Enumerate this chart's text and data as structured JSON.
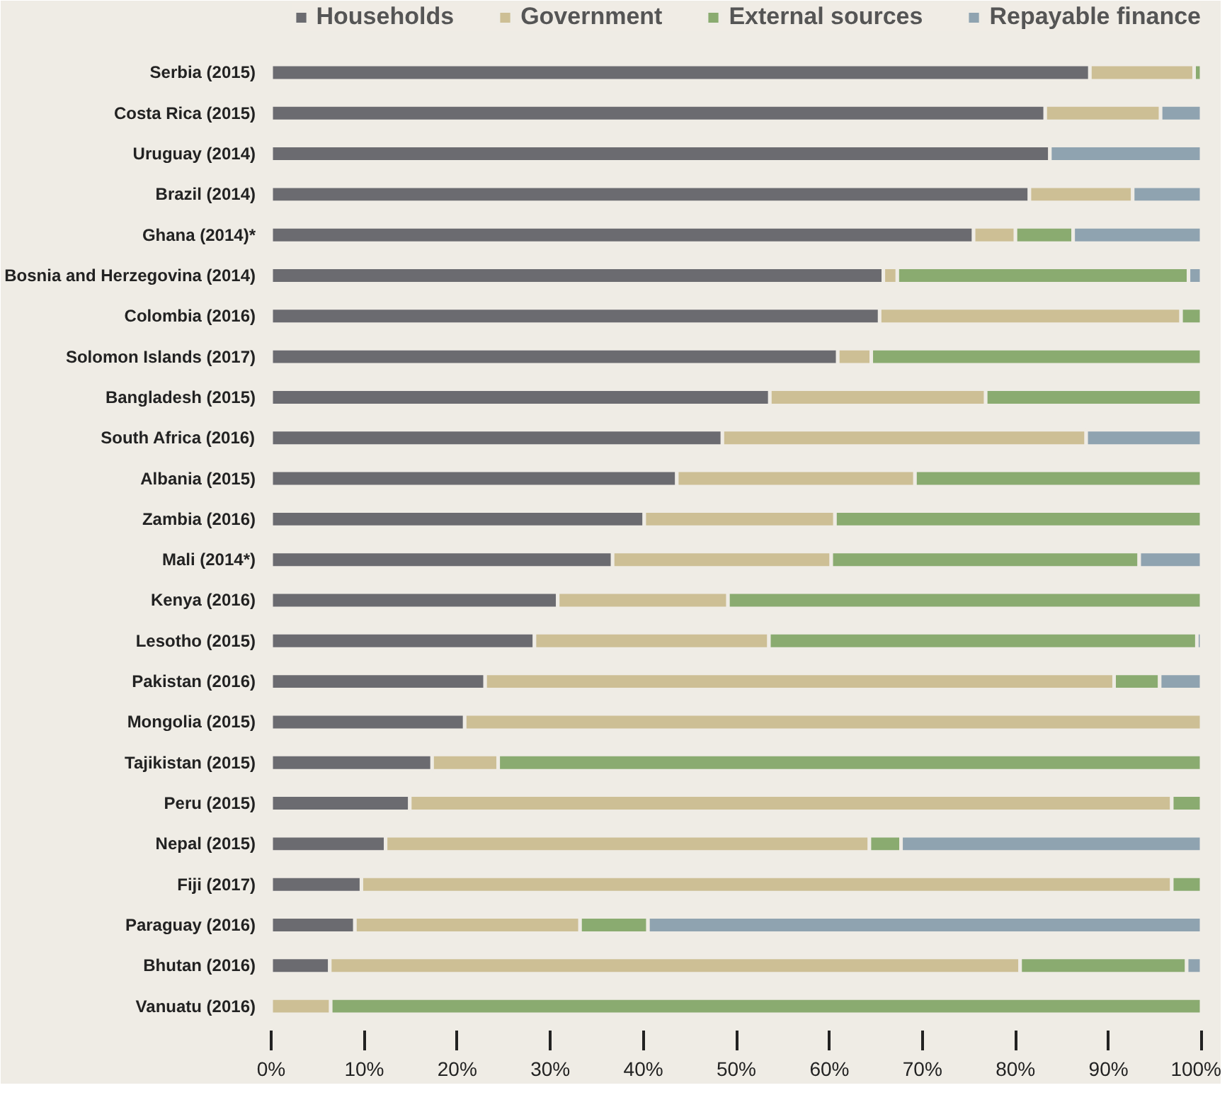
{
  "chart_data": {
    "type": "bar",
    "orientation": "horizontal",
    "stacked": true,
    "legend": "top",
    "categories": [
      "Serbia (2015)",
      "Costa Rica (2015)",
      "Uruguay (2014)",
      "Brazil (2014)",
      "Ghana (2014)*",
      "Bosnia and Herzegovina (2014)",
      "Colombia (2016)",
      "Solomon Islands (2017)",
      "Bangladesh (2015)",
      "South Africa (2016)",
      "Albania (2015)",
      "Zambia (2016)",
      "Mali (2014*)",
      "Kenya (2016)",
      "Lesotho (2015)",
      "Pakistan (2016)",
      "Mongolia (2015)",
      "Tajikistan (2015)",
      "Peru (2015)",
      "Nepal (2015)",
      "Fiji (2017)",
      "Paraguay (2016)",
      "Bhutan (2016)",
      "Vanuatu (2016)"
    ],
    "xlim": [
      0,
      100
    ],
    "xticks": [
      {
        "value": 0,
        "label": "0%"
      },
      {
        "value": 10,
        "label": "10%"
      },
      {
        "value": 20,
        "label": "20%"
      },
      {
        "value": 30,
        "label": "30%"
      },
      {
        "value": 40,
        "label": "40%"
      },
      {
        "value": 50,
        "label": "50%"
      },
      {
        "value": 60,
        "label": "60%"
      },
      {
        "value": 70,
        "label": "70%"
      },
      {
        "value": 80,
        "label": "80%"
      },
      {
        "value": 90,
        "label": "90%"
      },
      {
        "value": 100,
        "label": "100%"
      }
    ],
    "series": [
      {
        "name": "Households",
        "color": "#6b6b70",
        "values": [
          88.0,
          83.2,
          83.7,
          81.5,
          75.5,
          65.8,
          65.4,
          60.9,
          53.6,
          48.5,
          43.6,
          40.1,
          36.7,
          30.8,
          28.3,
          23.0,
          20.8,
          17.3,
          14.9,
          12.3,
          9.7,
          9.0,
          6.3,
          0
        ]
      },
      {
        "name": "Government",
        "color": "#cdbf95",
        "values": [
          11.2,
          12.4,
          0,
          11.1,
          4.5,
          1.5,
          32.4,
          3.6,
          23.2,
          39.1,
          25.6,
          20.5,
          23.5,
          18.3,
          25.2,
          67.6,
          79.2,
          7.1,
          81.9,
          52.0,
          87.1,
          24.2,
          74.2,
          6.4
        ]
      },
      {
        "name": "External sources",
        "color": "#8aab70",
        "values": [
          0.8,
          0,
          0,
          0,
          6.2,
          31.3,
          2.2,
          35.5,
          23.2,
          0,
          30.8,
          39.4,
          33.1,
          50.9,
          46.0,
          4.9,
          0,
          75.6,
          3.2,
          3.4,
          3.2,
          7.3,
          17.9,
          93.6
        ]
      },
      {
        "name": "Repayable finance",
        "color": "#8fa3b0",
        "values": [
          0,
          4.4,
          16.3,
          7.4,
          13.8,
          1.4,
          0,
          0,
          0,
          12.4,
          0,
          0,
          6.7,
          0,
          0.5,
          4.5,
          0,
          0,
          0,
          32.3,
          0,
          59.5,
          1.6,
          0
        ]
      }
    ]
  }
}
